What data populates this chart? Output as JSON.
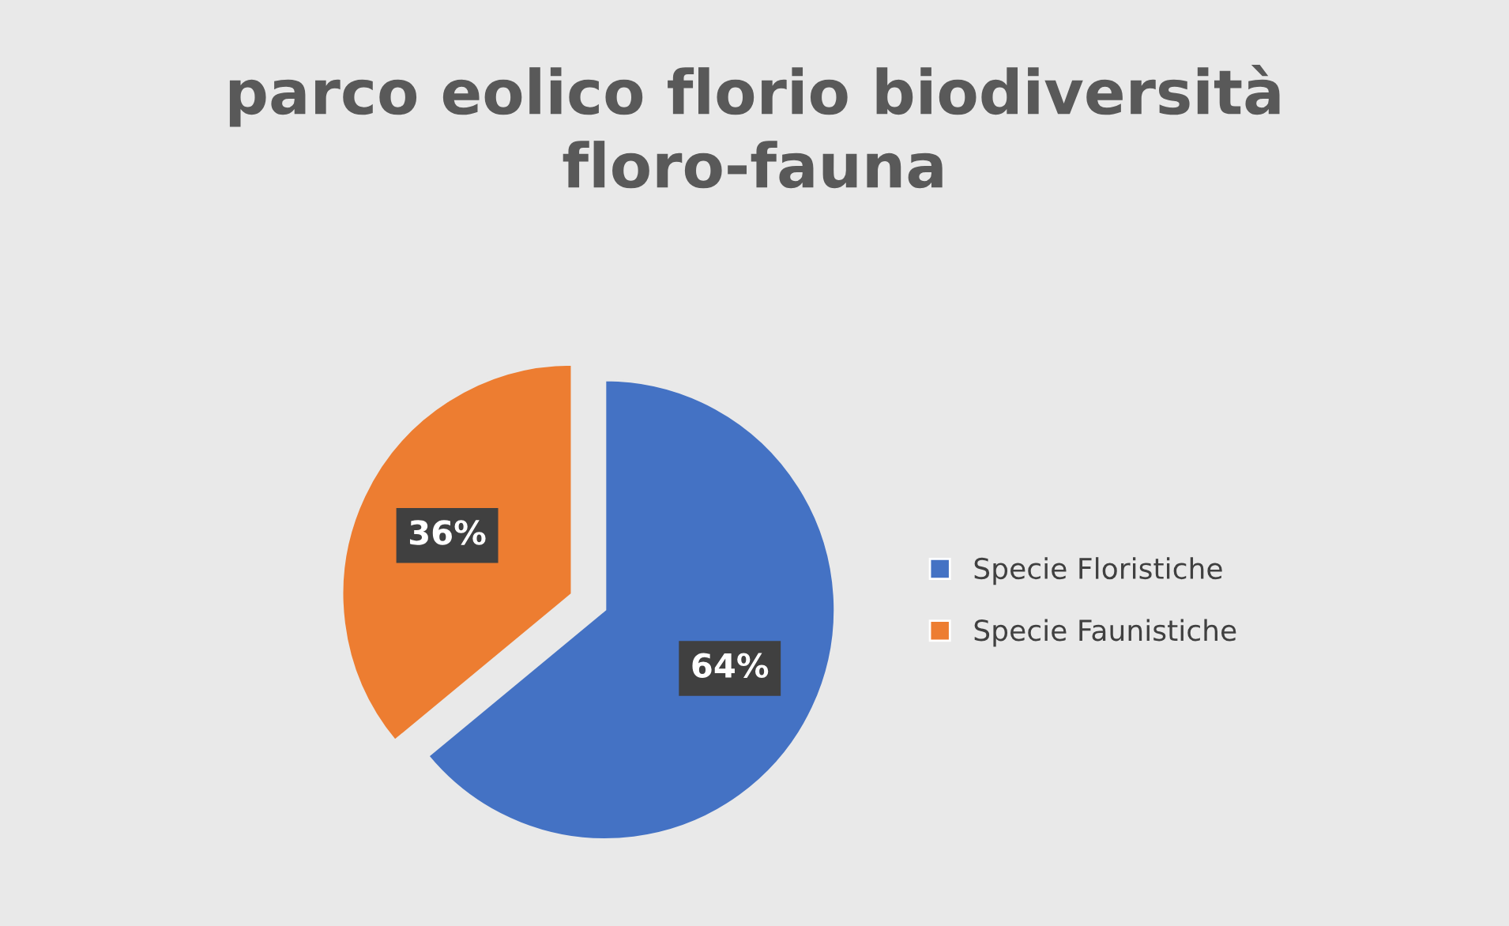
{
  "chart_data": {
    "type": "pie",
    "title": "parco eolico florio biodiversità\nfloro-fauna",
    "categories": [
      "Specie Floristiche",
      "Specie Faunistiche"
    ],
    "values": [
      64,
      36
    ],
    "colors": [
      "#4472c4",
      "#ed7d31"
    ],
    "value_labels": [
      "64%",
      "36%"
    ],
    "legend": "right"
  }
}
